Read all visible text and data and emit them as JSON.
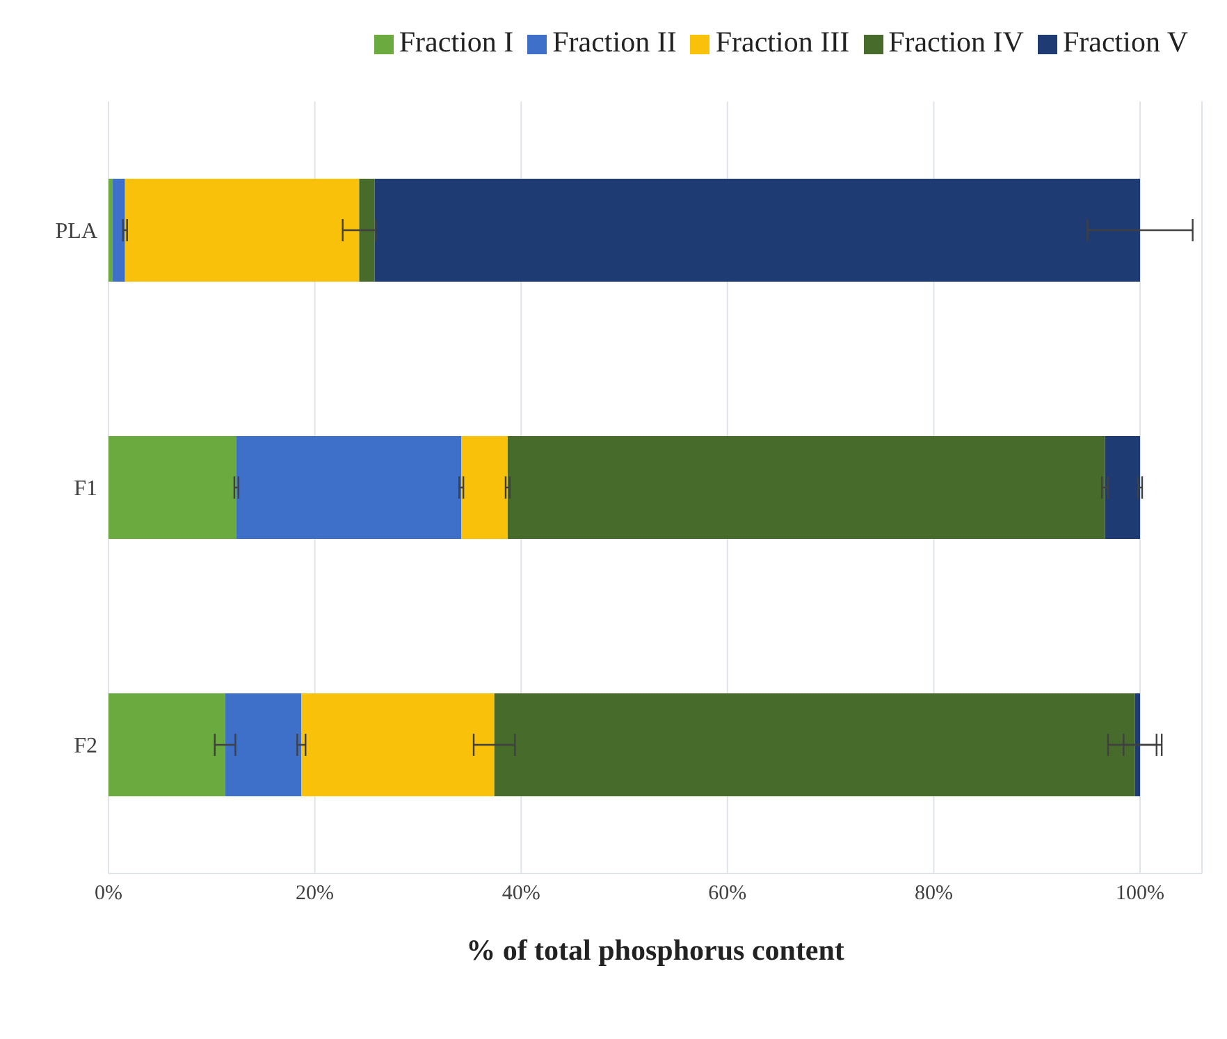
{
  "chart_data": {
    "type": "bar",
    "orientation": "horizontal",
    "stacked": true,
    "xlabel": "%  of total phosphorus content",
    "categories": [
      "PLA",
      "F1",
      "F2"
    ],
    "series": [
      {
        "name": "Fraction I",
        "color": "#6aaa3e",
        "values": [
          0.4,
          12.4,
          11.3
        ],
        "errors": [
          null,
          0.2,
          1.0
        ]
      },
      {
        "name": "Fraction II",
        "color": "#3e6fc9",
        "values": [
          1.2,
          21.8,
          7.4
        ],
        "errors": [
          0.2,
          0.2,
          0.4
        ]
      },
      {
        "name": "Fraction III",
        "color": "#f9c10a",
        "values": [
          22.7,
          4.5,
          18.7
        ],
        "errors": [
          1.6,
          0.2,
          2.0
        ]
      },
      {
        "name": "Fraction IV",
        "color": "#466b2b",
        "values": [
          1.5,
          57.9,
          62.1
        ],
        "errors": [
          null,
          0.3,
          2.6
        ]
      },
      {
        "name": "Fraction V",
        "color": "#1f3b73",
        "values": [
          74.2,
          3.4,
          0.5
        ],
        "errors": [
          5.1,
          0.2,
          1.6
        ]
      }
    ],
    "xlim": [
      0,
      106
    ],
    "xticks": [
      {
        "value": 0,
        "label": "0%"
      },
      {
        "value": 20,
        "label": "20%"
      },
      {
        "value": 40,
        "label": "40%"
      },
      {
        "value": 60,
        "label": "60%"
      },
      {
        "value": 80,
        "label": "80%"
      },
      {
        "value": 100,
        "label": "100%"
      }
    ],
    "grid": "x",
    "legend": "top right"
  }
}
